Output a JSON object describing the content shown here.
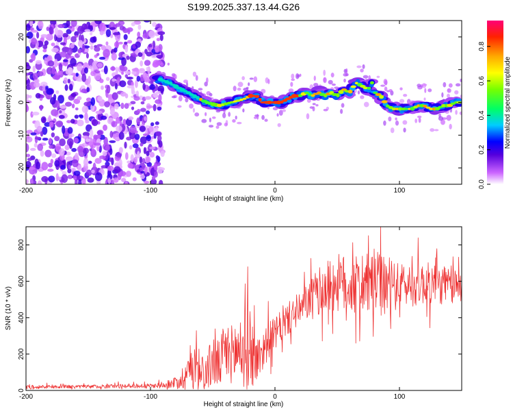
{
  "title": "S199.2025.337.13.44.G26",
  "chart_data": [
    {
      "type": "heatmap",
      "xlabel": "Height of straight line (km)",
      "ylabel": "Frequency (Hz)",
      "xlim": [
        -200,
        150
      ],
      "ylim": [
        -25,
        25
      ],
      "x_ticks": [
        -200,
        -100,
        0,
        100
      ],
      "y_ticks": [
        -20,
        -10,
        0,
        10,
        20
      ],
      "colorbar": {
        "label": "Normalized spectral amplitude",
        "range": [
          0,
          0.95
        ],
        "ticks": [
          0,
          0.2,
          0.4,
          0.6,
          0.8
        ]
      },
      "ridge": {
        "name": "dominant frequency",
        "x": [
          -92,
          -85,
          -75,
          -65,
          -55,
          -45,
          -35,
          -25,
          -20,
          -15,
          -10,
          -5,
          0,
          5,
          10,
          15,
          20,
          25,
          30,
          35,
          40,
          45,
          50,
          55,
          60,
          65,
          70,
          75,
          78,
          80,
          85,
          90,
          95,
          100,
          105,
          110,
          115,
          120,
          125,
          130,
          135,
          140,
          145,
          150
        ],
        "y": [
          7,
          6,
          4,
          2,
          0,
          -1,
          0,
          1,
          2,
          2,
          0,
          0,
          0,
          0,
          1,
          2,
          2,
          3,
          2,
          3,
          2,
          3,
          2,
          4,
          3,
          6,
          5,
          4,
          6,
          3,
          2,
          -1,
          -2,
          -2,
          -2,
          -2,
          -1,
          -1,
          -2,
          -2,
          -1,
          -1,
          0,
          0
        ]
      }
    },
    {
      "type": "line",
      "xlabel": "Height of straight line (km)",
      "ylabel": "SNR (10 * v/v)",
      "xlim": [
        -200,
        150
      ],
      "ylim": [
        0,
        900
      ],
      "x_ticks": [
        -200,
        -100,
        0,
        100
      ],
      "y_ticks": [
        0,
        200,
        400,
        600,
        800
      ],
      "color": "#ee3333",
      "series": [
        {
          "name": "SNR",
          "x": [
            -200,
            -180,
            -160,
            -140,
            -120,
            -100,
            -90,
            -82,
            -75,
            -68,
            -60,
            -55,
            -50,
            -45,
            -40,
            -35,
            -30,
            -25,
            -20,
            -15,
            -10,
            -5,
            0,
            5,
            10,
            15,
            20,
            25,
            30,
            40,
            50,
            60,
            70,
            80,
            90,
            100,
            110,
            120,
            130,
            140,
            150
          ],
          "values": [
            20,
            20,
            20,
            22,
            25,
            25,
            30,
            40,
            60,
            130,
            150,
            90,
            170,
            140,
            210,
            200,
            220,
            220,
            240,
            160,
            220,
            280,
            310,
            350,
            390,
            420,
            440,
            480,
            520,
            560,
            590,
            580,
            570,
            600,
            560,
            580,
            580,
            590,
            580,
            580,
            570
          ],
          "noise_amplitude": [
            10,
            10,
            10,
            10,
            12,
            12,
            15,
            25,
            60,
            130,
            120,
            100,
            160,
            130,
            180,
            160,
            200,
            220,
            240,
            130,
            120,
            100,
            90,
            90,
            90,
            90,
            90,
            100,
            110,
            150,
            160,
            170,
            160,
            180,
            160,
            120,
            120,
            120,
            110,
            110,
            100
          ]
        }
      ]
    }
  ]
}
